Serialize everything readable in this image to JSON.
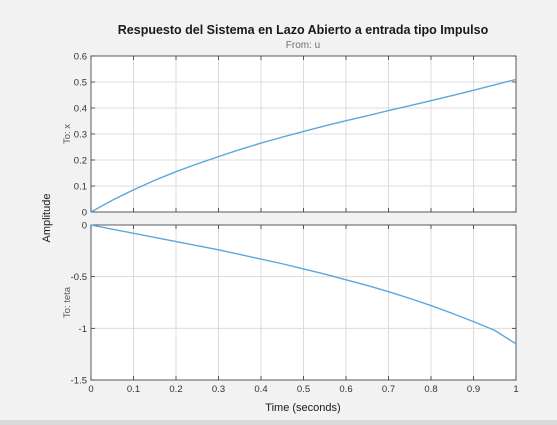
{
  "chart_data": {
    "type": "line",
    "title": "Respuesto del Sistema en Lazo Abierto a entrada tipo Impulso",
    "subtitle": "From: u",
    "xlabel": "Time (seconds)",
    "ylabel": "Amplitude",
    "grid": true,
    "colors": {
      "line": "#5aa8dc",
      "grid": "#dcdcdc",
      "axes_bg": "#ffffff",
      "figure_bg": "#f2f2f2"
    },
    "x_ticks": [
      "0",
      "0.1",
      "0.2",
      "0.3",
      "0.4",
      "0.5",
      "0.6",
      "0.7",
      "0.8",
      "0.9",
      "1"
    ],
    "subplots": [
      {
        "label": "To: x",
        "ylim": [
          0,
          0.6
        ],
        "y_ticks": [
          "0",
          "0.1",
          "0.2",
          "0.3",
          "0.4",
          "0.5",
          "0.6"
        ],
        "x": [
          0,
          0.05,
          0.1,
          0.15,
          0.2,
          0.25,
          0.3,
          0.35,
          0.4,
          0.45,
          0.5,
          0.55,
          0.6,
          0.65,
          0.7,
          0.75,
          0.8,
          0.85,
          0.9,
          0.95,
          1.0
        ],
        "y": [
          0,
          0.045,
          0.085,
          0.122,
          0.155,
          0.185,
          0.213,
          0.24,
          0.265,
          0.288,
          0.31,
          0.331,
          0.351,
          0.37,
          0.39,
          0.409,
          0.428,
          0.448,
          0.468,
          0.489,
          0.51
        ]
      },
      {
        "label": "To: teta",
        "ylim": [
          -1.5,
          0
        ],
        "y_ticks": [
          "0",
          "-0.5",
          "-1",
          "-1.5"
        ],
        "x": [
          0,
          0.05,
          0.1,
          0.15,
          0.2,
          0.25,
          0.3,
          0.35,
          0.4,
          0.45,
          0.5,
          0.55,
          0.6,
          0.65,
          0.7,
          0.75,
          0.8,
          0.85,
          0.9,
          0.95,
          1.0
        ],
        "y": [
          0,
          -0.04,
          -0.08,
          -0.12,
          -0.16,
          -0.2,
          -0.24,
          -0.285,
          -0.33,
          -0.375,
          -0.425,
          -0.475,
          -0.53,
          -0.585,
          -0.645,
          -0.71,
          -0.78,
          -0.855,
          -0.935,
          -1.02,
          -1.15
        ]
      }
    ]
  }
}
